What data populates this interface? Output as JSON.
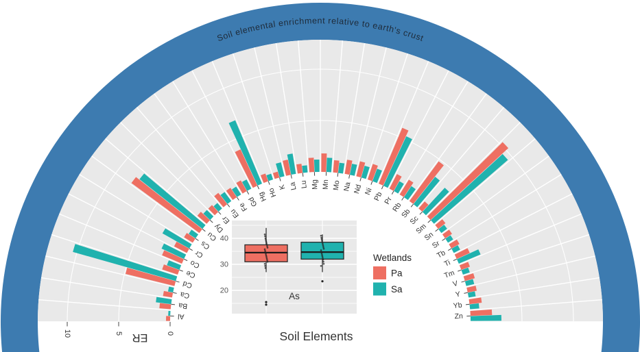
{
  "banner": {
    "text": "Soil elemental enrichment relative to earth's crust",
    "band_color": "#3d7bb0",
    "text_color": "#1e2a38"
  },
  "colors": {
    "pa_red": "#ee6f62",
    "sa_teal": "#20b2ae",
    "panel_gray": "#e9e9e9",
    "gridline_white": "#ffffff",
    "axis_text": "#333333",
    "tick_text": "#555555"
  },
  "chart_data": {
    "type": "polar_bar",
    "title": "Soil elemental enrichment relative to earth's crust",
    "xlabel": "Soil Elements",
    "ylabel": "ER",
    "radial_ticks": [
      0,
      5,
      10
    ],
    "radial_range": [
      0,
      13
    ],
    "grid": true,
    "categories": [
      "Al",
      "Ba",
      "Ca",
      "Cd",
      "Ce",
      "Co",
      "Cr",
      "Cs",
      "Cu",
      "Dy",
      "Er",
      "Eu",
      "Fe",
      "Gd",
      "Hg",
      "Ho",
      "K",
      "La",
      "Lu",
      "Mg",
      "Mn",
      "Mo",
      "Na",
      "Nd",
      "Ni",
      "Pb",
      "Pr",
      "Rb",
      "Sb",
      "Sc",
      "Sm",
      "Sn",
      "Sr",
      "Tb",
      "Ti",
      "Tm",
      "V",
      "Y",
      "Yb",
      "Zn"
    ],
    "series": [
      {
        "name": "Pa",
        "color": "#ee6f62",
        "values": [
          0.4,
          1.1,
          0.9,
          4.9,
          1.6,
          2.1,
          1.4,
          1.0,
          8.2,
          1.2,
          0.9,
          1.4,
          1.1,
          1.2,
          3.9,
          0.8,
          0.6,
          1.5,
          0.9,
          1.4,
          1.8,
          1.2,
          1.4,
          1.5,
          1.6,
          5.9,
          1.6,
          1.7,
          4.8,
          0.9,
          10.3,
          0.9,
          0.8,
          0.9,
          1.4,
          0.9,
          1.0,
          0.9,
          1.2,
          2.1
        ]
      },
      {
        "name": "Sa",
        "color": "#20b2ae",
        "values": [
          0.2,
          1.5,
          0.5,
          10.4,
          1.3,
          2.4,
          3.0,
          0.8,
          7.8,
          0.9,
          0.7,
          1.1,
          0.9,
          1.0,
          6.7,
          0.6,
          1.4,
          2.0,
          0.7,
          1.2,
          1.4,
          1.0,
          1.1,
          1.2,
          1.3,
          5.3,
          1.1,
          1.3,
          3.4,
          3.2,
          9.5,
          0.7,
          0.6,
          0.7,
          2.3,
          0.7,
          0.8,
          0.7,
          0.9,
          3.0
        ]
      }
    ],
    "legend": {
      "title": "Wetlands",
      "entries": [
        "Pa",
        "Sa"
      ],
      "position": "center-inset-right"
    },
    "inset_boxplot": {
      "type": "box",
      "element_label": "As",
      "y_ticks": [
        20,
        30,
        40
      ],
      "ylim": [
        12,
        46
      ],
      "groups": [
        {
          "name": "Pa",
          "color": "#ee6f62",
          "q1": 31.0,
          "median": 34.5,
          "q3": 37.5,
          "whisker_low": 27.0,
          "whisker_high": 44.0,
          "outliers": [
            15.5,
            14.5
          ],
          "points": [
            41.5,
            40.8,
            40.0,
            39.4,
            38.8,
            38.2,
            37.6,
            37.0,
            36.4,
            35.8,
            35.2,
            34.6,
            34.0,
            33.4,
            32.8,
            32.2,
            31.6,
            31.0,
            30.2,
            29.4,
            28.6
          ]
        },
        {
          "name": "Sa",
          "color": "#20b2ae",
          "q1": 32.0,
          "median": 34.7,
          "q3": 38.5,
          "whisker_low": 27.0,
          "whisker_high": 41.5,
          "outliers": [
            23.5
          ],
          "points": [
            41.0,
            40.2,
            39.6,
            39.0,
            38.4,
            37.8,
            37.2,
            36.6,
            36.0,
            35.4,
            34.8,
            34.2,
            33.6,
            33.0,
            32.4,
            31.8,
            31.0,
            30.2,
            29.4
          ]
        }
      ]
    }
  }
}
